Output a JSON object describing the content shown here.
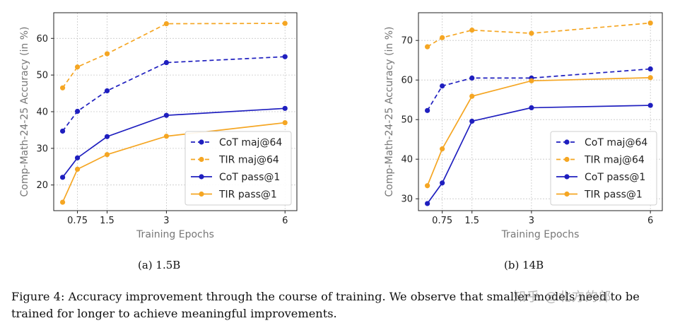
{
  "figure": {
    "caption_label": "Figure 4:",
    "caption_text": "Accuracy improvement through the course of training. We observe that smaller models need to be trained for longer to achieve meaningful improvements.",
    "watermark": "知乎 @北方的郎"
  },
  "colors": {
    "cot": "#1f1fbf",
    "tir": "#f5a623"
  },
  "chart_data": [
    {
      "type": "line",
      "subcaption": "(a) 1.5B",
      "xlabel": "Training Epochs",
      "ylabel": "Comp-Math-24-25 Accuracy (in %)",
      "xlim": [
        0.15,
        6.3
      ],
      "ylim": [
        13,
        67
      ],
      "xticks": [
        0.75,
        1.5,
        3,
        6
      ],
      "xtick_labels": [
        "0.75",
        "1.5",
        "3",
        "6"
      ],
      "yticks": [
        20,
        30,
        40,
        50,
        60
      ],
      "grid": true,
      "legend_position": "bottom-right",
      "series": [
        {
          "name": "CoT maj@64",
          "color": "#1f1fbf",
          "style": "dashed",
          "x": [
            0.375,
            0.75,
            1.5,
            3,
            6
          ],
          "y": [
            34.7,
            40.1,
            45.7,
            53.4,
            55.0
          ]
        },
        {
          "name": "TIR maj@64",
          "color": "#f5a623",
          "style": "dashed",
          "x": [
            0.375,
            0.75,
            1.5,
            3,
            6
          ],
          "y": [
            46.5,
            52.2,
            55.8,
            64.0,
            64.1
          ]
        },
        {
          "name": "CoT pass@1",
          "color": "#1f1fbf",
          "style": "solid",
          "x": [
            0.375,
            0.75,
            1.5,
            3,
            6
          ],
          "y": [
            22.1,
            27.4,
            33.2,
            39.0,
            40.9
          ]
        },
        {
          "name": "TIR pass@1",
          "color": "#f5a623",
          "style": "solid",
          "x": [
            0.375,
            0.75,
            1.5,
            3,
            6
          ],
          "y": [
            15.3,
            24.3,
            28.3,
            33.3,
            37.0
          ]
        }
      ]
    },
    {
      "type": "line",
      "subcaption": "(b) 14B",
      "xlabel": "Training Epochs",
      "ylabel": "Comp-Math-24-25 Accuracy (in %)",
      "xlim": [
        0.15,
        6.3
      ],
      "ylim": [
        27,
        77
      ],
      "xticks": [
        0.75,
        1.5,
        3,
        6
      ],
      "xtick_labels": [
        "0.75",
        "1.5",
        "3",
        "6"
      ],
      "yticks": [
        30,
        40,
        50,
        60,
        70
      ],
      "grid": true,
      "legend_position": "bottom-right",
      "series": [
        {
          "name": "CoT maj@64",
          "color": "#1f1fbf",
          "style": "dashed",
          "x": [
            0.375,
            0.75,
            1.5,
            3,
            6
          ],
          "y": [
            52.3,
            58.5,
            60.5,
            60.5,
            62.8
          ]
        },
        {
          "name": "TIR maj@64",
          "color": "#f5a623",
          "style": "dashed",
          "x": [
            0.375,
            0.75,
            1.5,
            3,
            6
          ],
          "y": [
            68.4,
            70.7,
            72.6,
            71.8,
            74.4
          ]
        },
        {
          "name": "CoT pass@1",
          "color": "#1f1fbf",
          "style": "solid",
          "x": [
            0.375,
            0.75,
            1.5,
            3,
            6
          ],
          "y": [
            28.8,
            34.0,
            49.6,
            53.0,
            53.6
          ]
        },
        {
          "name": "TIR pass@1",
          "color": "#f5a623",
          "style": "solid",
          "x": [
            0.375,
            0.75,
            1.5,
            3,
            6
          ],
          "y": [
            33.3,
            42.6,
            55.9,
            59.8,
            60.6
          ]
        }
      ]
    }
  ]
}
